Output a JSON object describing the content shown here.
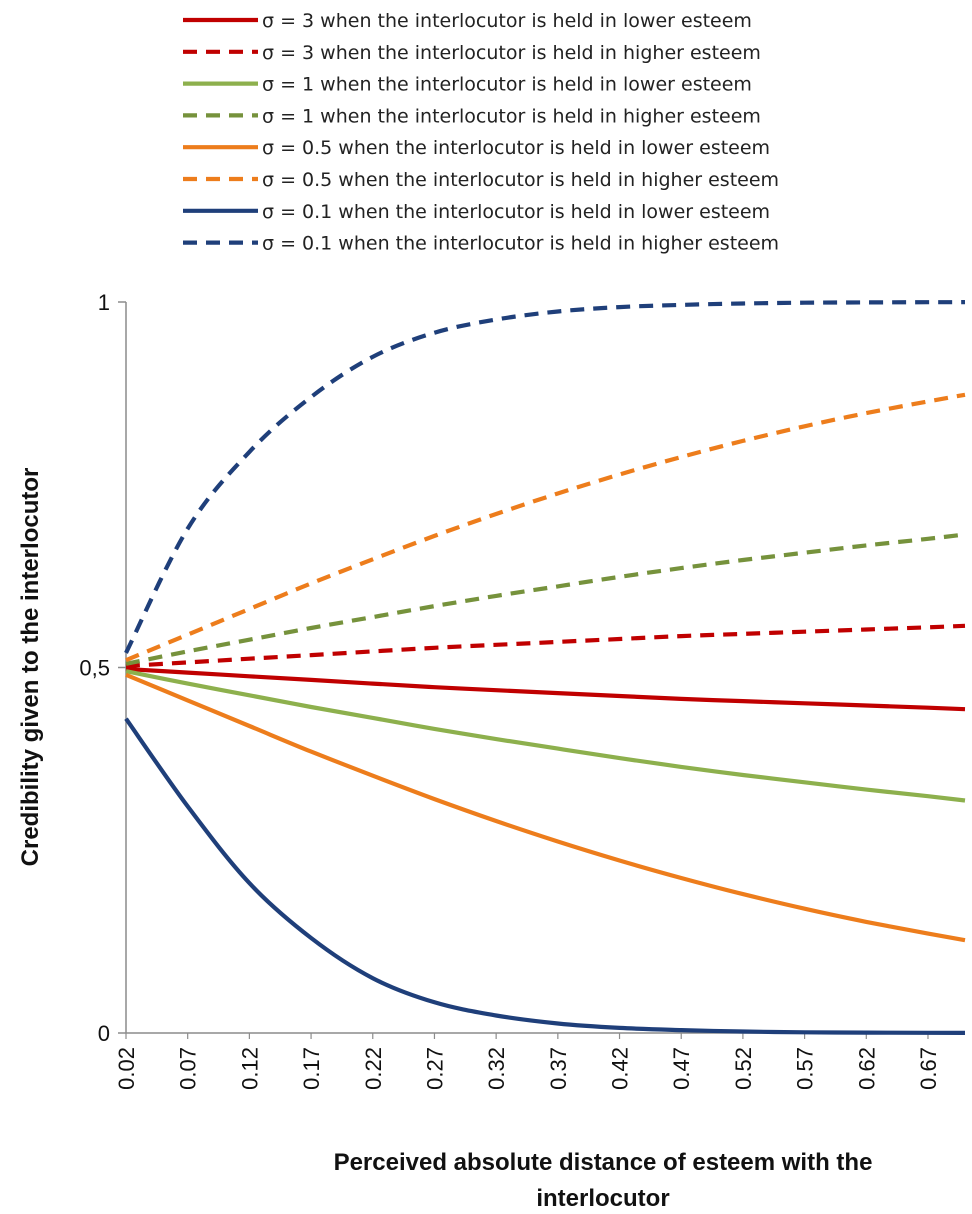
{
  "chart_data": {
    "type": "line",
    "title": "",
    "xlabel_lines": [
      "Perceived absolute distance of esteem with the",
      "interlocutor"
    ],
    "ylabel": "Credibility given to the interlocutor",
    "ylim": [
      0,
      1
    ],
    "y_ticks": [
      {
        "value": 0,
        "label": "0"
      },
      {
        "value": 0.5,
        "label": "0,5"
      },
      {
        "value": 1,
        "label": "1"
      }
    ],
    "x_range": [
      0.02,
      0.7
    ],
    "x_tick_labels": [
      "0.02",
      "0.07",
      "0.12",
      "0.17",
      "0.22",
      "0.27",
      "0.32",
      "0.37",
      "0.42",
      "0.47",
      "0.52",
      "0.57",
      "0.62",
      "0.67"
    ],
    "legend_position": "top",
    "x": [
      0.02,
      0.07,
      0.12,
      0.17,
      0.22,
      0.27,
      0.32,
      0.37,
      0.42,
      0.47,
      0.52,
      0.57,
      0.62,
      0.67,
      0.7
    ],
    "series": [
      {
        "name": "σ = 3 when the interlocutor is held in lower esteem",
        "color": "#c00000",
        "dash": false,
        "values": [
          0.498,
          0.493,
          0.488,
          0.483,
          0.478,
          0.473,
          0.469,
          0.465,
          0.461,
          0.457,
          0.454,
          0.451,
          0.448,
          0.445,
          0.443
        ]
      },
      {
        "name": "σ = 3 when the interlocutor is held in higher esteem",
        "color": "#c00000",
        "dash": true,
        "values": [
          0.502,
          0.507,
          0.512,
          0.517,
          0.522,
          0.527,
          0.531,
          0.535,
          0.539,
          0.543,
          0.546,
          0.549,
          0.552,
          0.555,
          0.557
        ]
      },
      {
        "name": "σ = 1 when the interlocutor is held in lower esteem",
        "color": "#8db04d",
        "dash": false,
        "values": [
          0.495,
          0.478,
          0.462,
          0.446,
          0.431,
          0.416,
          0.402,
          0.389,
          0.376,
          0.364,
          0.353,
          0.343,
          0.333,
          0.324,
          0.318
        ]
      },
      {
        "name": "σ = 1 when the interlocutor is held in higher esteem",
        "color": "#76923c",
        "dash": true,
        "values": [
          0.505,
          0.522,
          0.538,
          0.554,
          0.569,
          0.584,
          0.598,
          0.611,
          0.624,
          0.636,
          0.647,
          0.657,
          0.667,
          0.676,
          0.682
        ]
      },
      {
        "name": "σ = 0.5 when the interlocutor is held in lower esteem",
        "color": "#ed7d1c",
        "dash": false,
        "values": [
          0.49,
          0.455,
          0.42,
          0.385,
          0.352,
          0.32,
          0.29,
          0.262,
          0.236,
          0.212,
          0.19,
          0.17,
          0.152,
          0.136,
          0.127
        ]
      },
      {
        "name": "σ = 0.5 when the interlocutor is held in higher esteem",
        "color": "#ed7d1c",
        "dash": true,
        "values": [
          0.51,
          0.545,
          0.58,
          0.615,
          0.648,
          0.68,
          0.71,
          0.738,
          0.764,
          0.788,
          0.81,
          0.83,
          0.848,
          0.864,
          0.873
        ]
      },
      {
        "name": "σ = 0.1 when the interlocutor is held in lower esteem",
        "color": "#1f3f7a",
        "dash": false,
        "values": [
          0.43,
          0.31,
          0.205,
          0.13,
          0.075,
          0.042,
          0.024,
          0.013,
          0.007,
          0.004,
          0.002,
          0.001,
          0.0005,
          0.0003,
          0.0002
        ]
      },
      {
        "name": "σ = 0.1 when the interlocutor is held in higher esteem",
        "color": "#1f3f7a",
        "dash": true,
        "values": [
          0.52,
          0.69,
          0.795,
          0.87,
          0.925,
          0.958,
          0.976,
          0.987,
          0.993,
          0.996,
          0.998,
          0.999,
          0.9995,
          0.9997,
          0.9998
        ]
      }
    ]
  }
}
